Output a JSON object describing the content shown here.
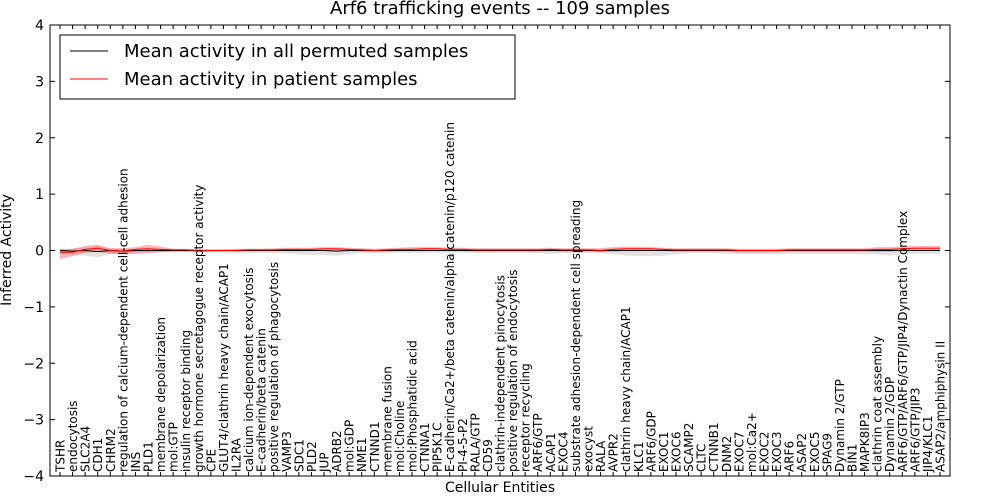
{
  "chart_data": {
    "type": "line",
    "title": "Arf6 trafficking events -- 109 samples",
    "xlabel": "Cellular Entities",
    "ylabel": "Inferred Activity",
    "ylim": [
      -4,
      4
    ],
    "yticks": [
      -4,
      -3,
      -2,
      -1,
      0,
      1,
      2,
      3,
      4
    ],
    "ytick_labels": [
      "−4",
      "−3",
      "−2",
      "−1",
      "0",
      "1",
      "2",
      "3",
      "4"
    ],
    "grid": false,
    "legend_position": "top-left",
    "legend": [
      {
        "name": "Mean activity in all permuted samples",
        "color": "#000000"
      },
      {
        "name": "Mean activity in patient samples",
        "color": "#ff0000"
      }
    ],
    "categories": [
      "TSHR",
      "endocytosis",
      "SLC2A4",
      "CDH1",
      "CHRM2",
      "regulation of calcium-dependent cell-cell adhesion",
      "INS",
      "PLD1",
      "membrane depolarization",
      "mol:GTP",
      "insulin receptor binding",
      "growth hormone secretagogue receptor activity",
      "CPE",
      "GLUT4/clathrin heavy chain/ACAP1",
      "IL2RA",
      "calcium ion-dependent exocytosis",
      "E-cadherin/beta catenin",
      "positive regulation of phagocytosis",
      "VAMP3",
      "SDC1",
      "PLD2",
      "JUP",
      "ADRB2",
      "mol:GDP",
      "NME1",
      "CTNND1",
      "membrane fusion",
      "mol:Choline",
      "mol:Phosphatidic acid",
      "CTNNA1",
      "PIP5K1C",
      "E-cadherin/Ca2+/beta catenin/alpha catenin/p120 catenin",
      "PI-4-5-P2",
      "RALA/GTP",
      "CD59",
      "clathrin-independent pinocytosis",
      "positive regulation of endocytosis",
      "receptor recycling",
      "ARF6/GTP",
      "ACAP1",
      "EXOC4",
      "substrate adhesion-dependent cell spreading",
      "exocyst",
      "RALA",
      "AVPR2",
      "clathrin heavy chain/ACAP1",
      "KLC1",
      "ARF6/GDP",
      "EXOC1",
      "EXOC6",
      "SCAMP2",
      "CLTC",
      "CTNNB1",
      "DNM2",
      "EXOC7",
      "mol:Ca2+",
      "EXOC2",
      "EXOC3",
      "ARF6",
      "ASAP2",
      "EXOC5",
      "SPAG9",
      "Dynamin 2/GTP",
      "BIN1",
      "MAPK8IP3",
      "clathrin coat assembly",
      "Dynamin 2/GDP",
      "ARF6/GTP/ARF6/GTP/JIP4/Dynactin Complex",
      "ARF6/GTP/JIP3",
      "JIP4/KLC1",
      "ASAP2/amphiphysin II"
    ],
    "series": [
      {
        "name": "Mean activity in all permuted samples",
        "color": "#000000",
        "values": [
          0.0,
          -0.01,
          0.0,
          -0.02,
          0.0,
          -0.01,
          0.0,
          0.0,
          0.0,
          0.0,
          0.0,
          0.0,
          0.0,
          0.0,
          0.0,
          0.0,
          0.0,
          0.0,
          0.0,
          0.0,
          0.0,
          0.0,
          -0.01,
          0.0,
          0.0,
          0.0,
          0.0,
          0.0,
          0.0,
          0.0,
          0.0,
          0.0,
          0.0,
          0.0,
          0.0,
          0.0,
          0.0,
          0.0,
          0.0,
          0.0,
          0.0,
          0.0,
          0.0,
          0.0,
          0.0,
          0.0,
          0.0,
          0.0,
          0.0,
          0.0,
          0.0,
          0.0,
          0.0,
          0.0,
          0.0,
          0.0,
          0.0,
          0.0,
          0.0,
          0.0,
          0.0,
          0.0,
          0.0,
          0.0,
          0.0,
          0.0,
          0.0,
          0.0,
          0.0,
          0.0,
          0.0
        ],
        "band_upper": [
          0.03,
          0.03,
          0.05,
          0.08,
          0.03,
          0.03,
          0.02,
          0.02,
          0.02,
          0.02,
          0.02,
          0.02,
          0.02,
          0.02,
          0.02,
          0.02,
          0.02,
          0.02,
          0.02,
          0.02,
          0.02,
          0.02,
          0.03,
          0.02,
          0.02,
          0.02,
          0.02,
          0.02,
          0.02,
          0.02,
          0.02,
          0.02,
          0.02,
          0.02,
          0.02,
          0.02,
          0.02,
          0.02,
          0.02,
          0.02,
          0.02,
          0.02,
          0.02,
          0.02,
          0.02,
          0.02,
          0.02,
          0.02,
          0.02,
          0.02,
          0.02,
          0.02,
          0.02,
          0.02,
          0.02,
          0.02,
          0.02,
          0.02,
          0.02,
          0.02,
          0.02,
          0.02,
          0.02,
          0.02,
          0.02,
          0.02,
          0.02,
          0.02,
          0.02,
          0.02,
          0.02
        ],
        "band_lower": [
          -0.05,
          -0.06,
          -0.09,
          -0.12,
          -0.06,
          -0.05,
          -0.03,
          -0.03,
          -0.03,
          -0.03,
          -0.03,
          -0.03,
          -0.03,
          -0.03,
          -0.04,
          -0.04,
          -0.04,
          -0.05,
          -0.05,
          -0.07,
          -0.08,
          -0.08,
          -0.09,
          -0.07,
          -0.05,
          -0.05,
          -0.04,
          -0.04,
          -0.04,
          -0.04,
          -0.04,
          -0.04,
          -0.04,
          -0.05,
          -0.05,
          -0.04,
          -0.04,
          -0.04,
          -0.05,
          -0.06,
          -0.05,
          -0.05,
          -0.05,
          -0.05,
          -0.06,
          -0.09,
          -0.1,
          -0.1,
          -0.09,
          -0.07,
          -0.05,
          -0.05,
          -0.05,
          -0.06,
          -0.06,
          -0.06,
          -0.06,
          -0.06,
          -0.06,
          -0.06,
          -0.06,
          -0.06,
          -0.06,
          -0.06,
          -0.07,
          -0.07,
          -0.09,
          -0.07,
          -0.06,
          -0.06,
          -0.06
        ]
      },
      {
        "name": "Mean activity in patient samples",
        "color": "#ff0000",
        "values": [
          -0.03,
          -0.03,
          0.02,
          0.04,
          0.0,
          -0.01,
          0.02,
          0.03,
          0.02,
          0.01,
          0.01,
          0.0,
          0.0,
          0.0,
          0.0,
          0.01,
          0.01,
          0.01,
          0.02,
          0.02,
          0.02,
          0.03,
          0.03,
          0.02,
          0.01,
          0.0,
          0.01,
          0.02,
          0.02,
          0.03,
          0.03,
          0.02,
          0.02,
          0.01,
          0.01,
          0.01,
          0.01,
          0.01,
          0.01,
          0.02,
          0.01,
          0.01,
          0.01,
          0.0,
          0.02,
          0.03,
          0.03,
          0.03,
          0.02,
          0.01,
          0.01,
          0.01,
          0.01,
          0.01,
          0.0,
          0.0,
          0.0,
          0.0,
          0.01,
          0.01,
          0.01,
          0.01,
          0.01,
          0.01,
          0.01,
          0.02,
          0.02,
          0.03,
          0.04,
          0.04,
          0.04
        ],
        "band_upper": [
          0.02,
          0.03,
          0.08,
          0.1,
          0.04,
          0.04,
          0.06,
          0.1,
          0.07,
          0.03,
          0.03,
          0.02,
          0.02,
          0.02,
          0.03,
          0.03,
          0.03,
          0.04,
          0.05,
          0.05,
          0.05,
          0.06,
          0.06,
          0.05,
          0.04,
          0.03,
          0.04,
          0.05,
          0.06,
          0.06,
          0.06,
          0.05,
          0.05,
          0.04,
          0.04,
          0.04,
          0.04,
          0.04,
          0.04,
          0.05,
          0.04,
          0.04,
          0.04,
          0.04,
          0.06,
          0.07,
          0.07,
          0.06,
          0.05,
          0.04,
          0.04,
          0.04,
          0.04,
          0.04,
          0.03,
          0.03,
          0.03,
          0.03,
          0.04,
          0.04,
          0.04,
          0.04,
          0.04,
          0.04,
          0.04,
          0.06,
          0.06,
          0.07,
          0.08,
          0.08,
          0.08
        ],
        "band_lower": [
          -0.15,
          -0.1,
          -0.04,
          -0.02,
          -0.06,
          -0.07,
          -0.06,
          -0.05,
          -0.03,
          -0.02,
          -0.02,
          -0.02,
          -0.02,
          -0.02,
          -0.02,
          -0.01,
          -0.01,
          -0.01,
          -0.01,
          -0.01,
          -0.01,
          0.0,
          0.0,
          -0.01,
          -0.02,
          -0.02,
          -0.02,
          -0.01,
          -0.01,
          0.0,
          0.0,
          -0.01,
          -0.01,
          -0.02,
          -0.02,
          -0.02,
          -0.02,
          -0.02,
          -0.02,
          -0.01,
          -0.02,
          -0.02,
          -0.02,
          -0.03,
          -0.02,
          -0.01,
          -0.01,
          0.0,
          -0.01,
          -0.02,
          -0.02,
          -0.02,
          -0.02,
          -0.02,
          -0.03,
          -0.03,
          -0.03,
          -0.03,
          -0.02,
          -0.02,
          -0.02,
          -0.02,
          -0.02,
          -0.02,
          -0.02,
          -0.02,
          -0.02,
          -0.01,
          0.0,
          0.0,
          0.0
        ]
      }
    ]
  }
}
